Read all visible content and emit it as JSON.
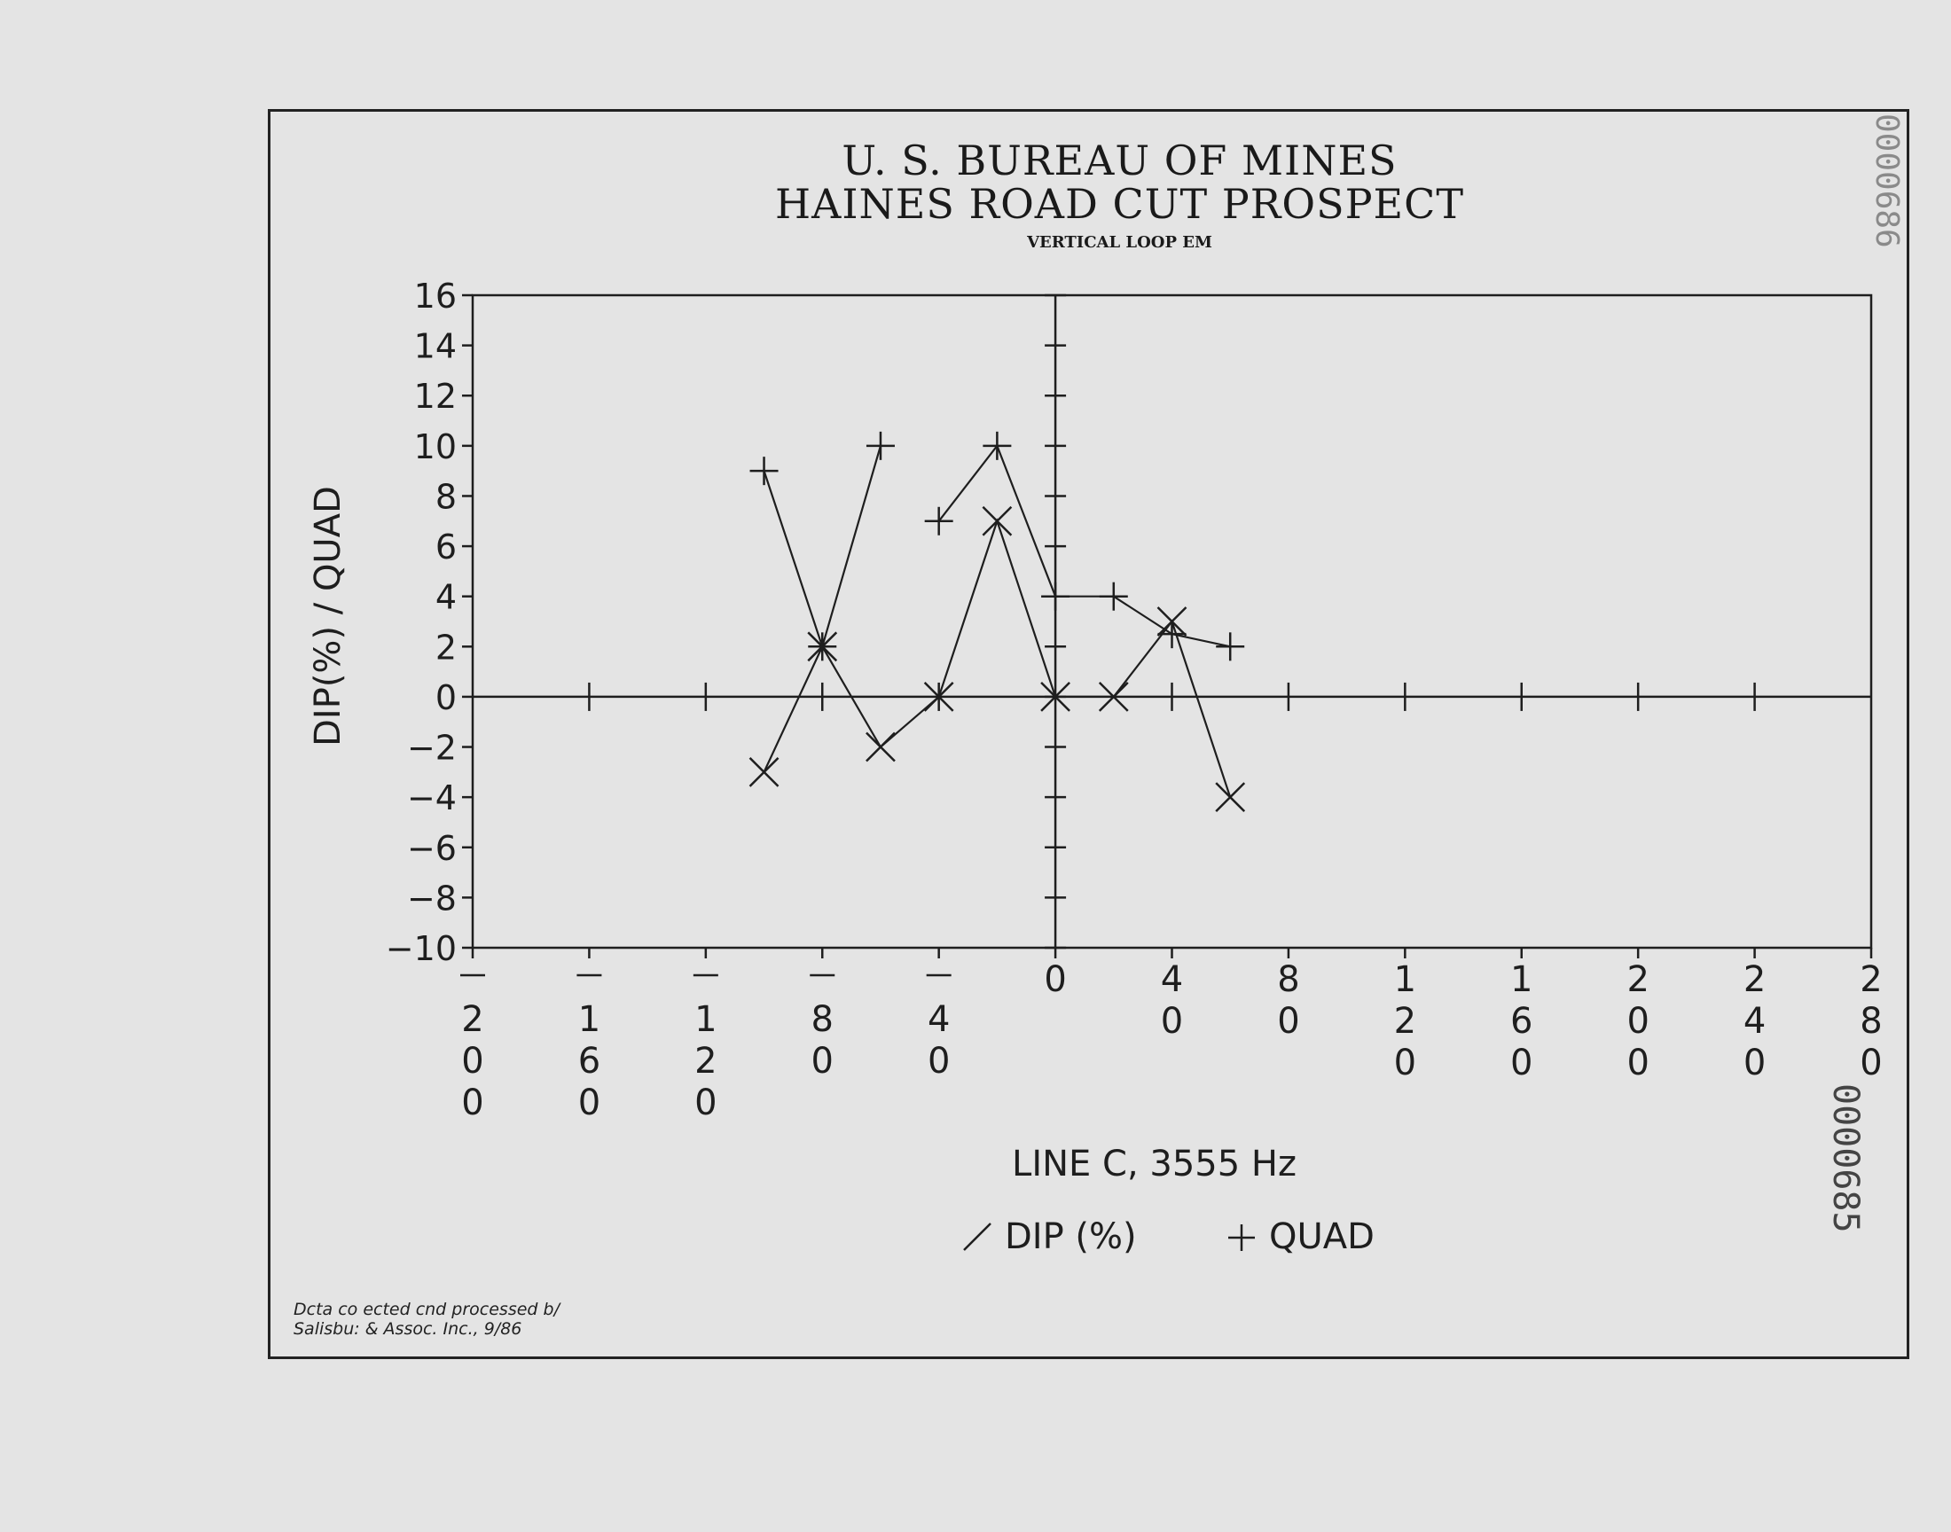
{
  "header": {
    "title_line1": "U. S. BUREAU OF MINES",
    "title_line2": "HAINES ROAD CUT PROSPECT",
    "subtitle": "VERTICAL LOOP EM"
  },
  "footer": {
    "credit_line1": "Dcta co ected cnd processed b/",
    "credit_line2": "Salisbu:  & Assoc. Inc., 9/86"
  },
  "stamps": {
    "bottom": "0000685",
    "top": "0000686"
  },
  "chart_data": {
    "type": "line",
    "title": "U. S. BUREAU OF MINES / HAINES ROAD CUT PROSPECT",
    "subtitle": "VERTICAL LOOP EM",
    "ylabel": "DIP(%) / QUAD",
    "xlabel": "LINE C, 3555 Hz",
    "legend_text": {
      "dip": "DIP (%)",
      "quad": "QUAD"
    },
    "legend_placement": "bottom-center",
    "xlim": [
      -200,
      280
    ],
    "ylim": [
      -10,
      16
    ],
    "x_ticks": [
      -200,
      -160,
      -120,
      -80,
      -40,
      0,
      40,
      80,
      120,
      160,
      200,
      240,
      280
    ],
    "x_tick_labels": [
      "-200",
      "-160",
      "-120",
      "-80",
      "-40",
      "0",
      "40",
      "80",
      "120",
      "160",
      "200",
      "240",
      "280"
    ],
    "y_ticks": [
      16,
      14,
      12,
      10,
      8,
      6,
      4,
      2,
      0,
      -2,
      -4,
      -6,
      -8,
      -10
    ],
    "y_tick_labels": [
      "16",
      "14",
      "12",
      "10",
      "8",
      "6",
      "4",
      "2",
      "0",
      "−2",
      "−4",
      "−6",
      "−8",
      "−10"
    ],
    "grid": false,
    "series": [
      {
        "key": "dip",
        "marker": "x",
        "segments": [
          [
            [
              -100,
              -3
            ],
            [
              -80,
              2
            ],
            [
              -60,
              -2
            ],
            [
              -40,
              0
            ],
            [
              -20,
              7
            ],
            [
              0,
              0
            ],
            [
              20,
              0
            ],
            [
              40,
              3
            ],
            [
              60,
              -4
            ]
          ]
        ]
      },
      {
        "key": "quad",
        "marker": "plus",
        "segments": [
          [
            [
              -100,
              9
            ],
            [
              -80,
              2
            ],
            [
              -60,
              10
            ]
          ],
          [
            [
              -40,
              7
            ],
            [
              -20,
              10
            ],
            [
              0,
              4
            ],
            [
              20,
              4
            ],
            [
              40,
              2.5
            ],
            [
              60,
              2
            ]
          ]
        ]
      }
    ],
    "colors": {
      "ink": "#1e1e1e",
      "paper": "#e4e4e4"
    }
  }
}
